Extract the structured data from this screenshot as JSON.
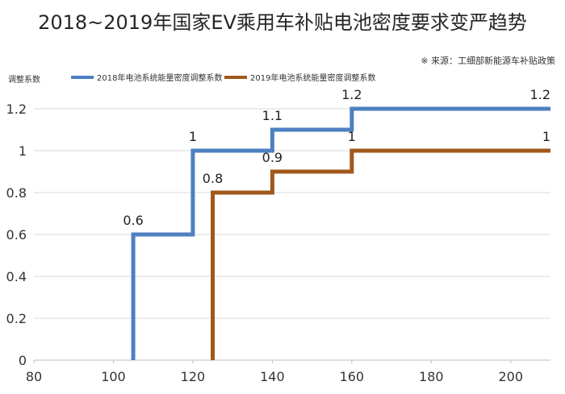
{
  "chart_data": {
    "type": "line",
    "step": true,
    "title": "2018~2019年国家EV乘用车补贴电池密度要求变严趋势",
    "source": "※ 来源：工细部新能源车补贴政策",
    "ylabel": "调整系数",
    "xlabel": "",
    "xlim": [
      80,
      210
    ],
    "ylim": [
      0,
      1.2
    ],
    "xticks": [
      80,
      100,
      120,
      140,
      160,
      180,
      200
    ],
    "yticks": [
      0,
      0.2,
      0.4,
      0.6,
      0.8,
      1,
      1.2
    ],
    "grid": "horizontal",
    "legend": "top",
    "series": [
      {
        "name": "2018年电池系统能量密度调整系数",
        "color": "#4e80c1",
        "points": [
          [
            105,
            0
          ],
          [
            105,
            0.6
          ],
          [
            120,
            0.6
          ],
          [
            120,
            1
          ],
          [
            140,
            1
          ],
          [
            140,
            1.1
          ],
          [
            160,
            1.1
          ],
          [
            160,
            1.2
          ],
          [
            210,
            1.2
          ]
        ],
        "labels": [
          {
            "x": 105,
            "y": 0.6,
            "text": "0.6"
          },
          {
            "x": 120,
            "y": 1,
            "text": "1"
          },
          {
            "x": 140,
            "y": 1.1,
            "text": "1.1"
          },
          {
            "x": 160,
            "y": 1.2,
            "text": "1.2"
          },
          {
            "x": 210,
            "y": 1.2,
            "text": "1.2"
          }
        ]
      },
      {
        "name": "2019年电池系统能量密度调整系数",
        "color": "#a0581a",
        "points": [
          [
            125,
            0
          ],
          [
            125,
            0.8
          ],
          [
            140,
            0.8
          ],
          [
            140,
            0.9
          ],
          [
            160,
            0.9
          ],
          [
            160,
            1
          ],
          [
            210,
            1
          ]
        ],
        "labels": [
          {
            "x": 125,
            "y": 0.8,
            "text": "0.8"
          },
          {
            "x": 140,
            "y": 0.9,
            "text": "0.9"
          },
          {
            "x": 160,
            "y": 1,
            "text": "1"
          },
          {
            "x": 210,
            "y": 1,
            "text": "1"
          }
        ]
      }
    ]
  }
}
